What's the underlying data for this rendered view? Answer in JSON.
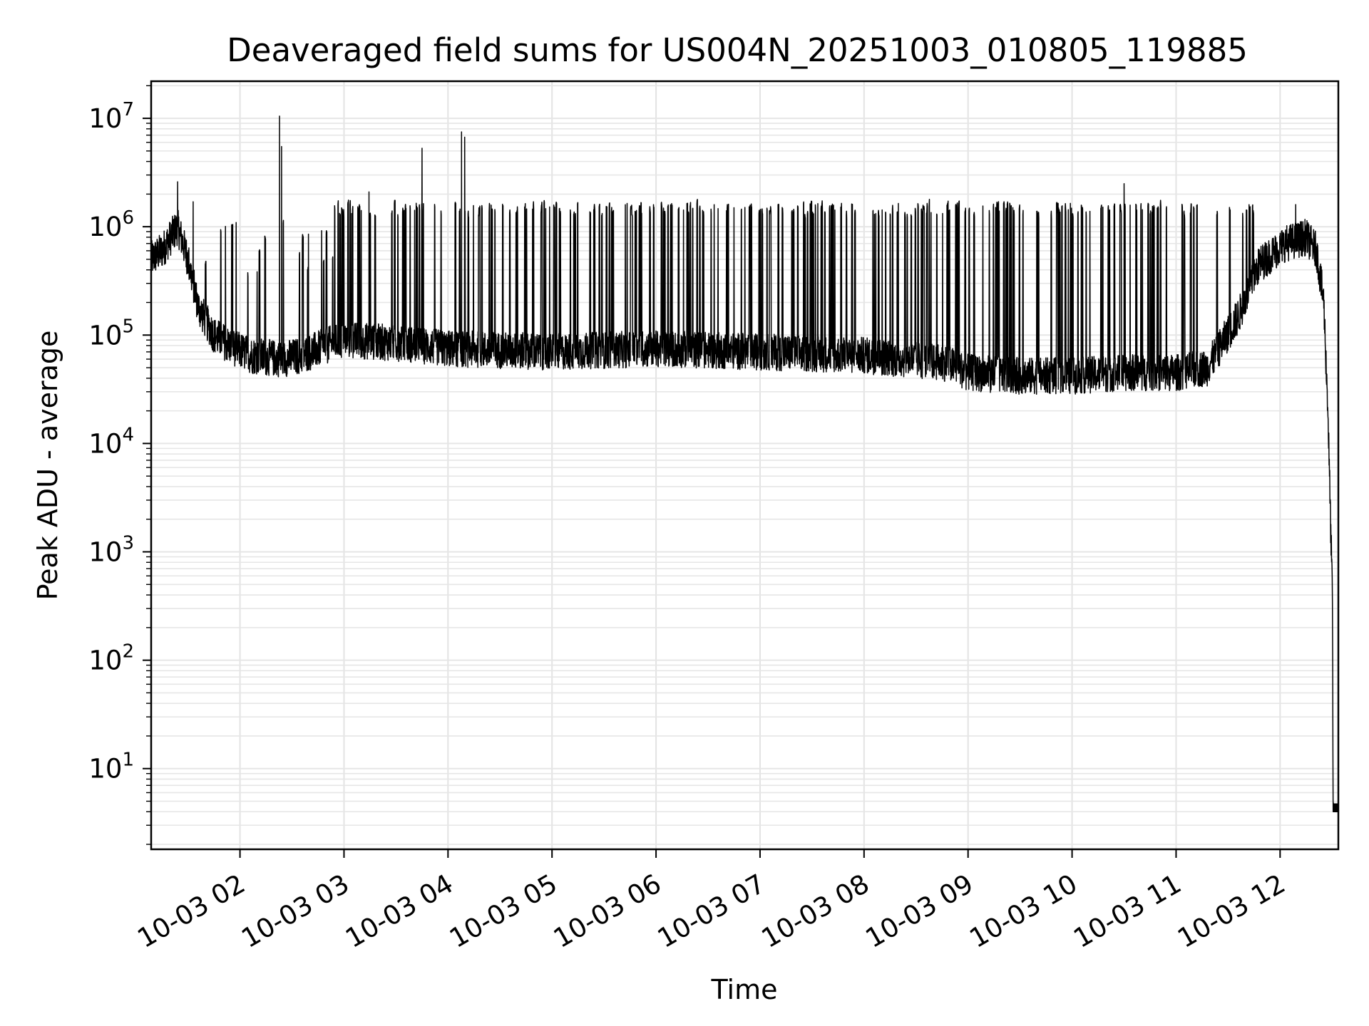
{
  "chart_data": {
    "type": "line",
    "title": "Deaveraged field sums for US004N_20251003_010805_119885",
    "xlabel": "Time",
    "ylabel": "Peak ADU - average",
    "yscale": "log",
    "ylim": [
      1.8,
      22000000
    ],
    "xlim_hours": [
      1.146,
      12.56
    ],
    "grid": true,
    "x_ticks": [
      {
        "hour": 2,
        "label": "10-03 02"
      },
      {
        "hour": 3,
        "label": "10-03 03"
      },
      {
        "hour": 4,
        "label": "10-03 04"
      },
      {
        "hour": 5,
        "label": "10-03 05"
      },
      {
        "hour": 6,
        "label": "10-03 06"
      },
      {
        "hour": 7,
        "label": "10-03 07"
      },
      {
        "hour": 8,
        "label": "10-03 08"
      },
      {
        "hour": 9,
        "label": "10-03 09"
      },
      {
        "hour": 10,
        "label": "10-03 10"
      },
      {
        "hour": 11,
        "label": "10-03 11"
      },
      {
        "hour": 12,
        "label": "10-03 12"
      }
    ],
    "y_ticks": [
      {
        "value": 10,
        "base": "10",
        "exp": "1"
      },
      {
        "value": 100,
        "base": "10",
        "exp": "2"
      },
      {
        "value": 1000,
        "base": "10",
        "exp": "3"
      },
      {
        "value": 10000,
        "base": "10",
        "exp": "4"
      },
      {
        "value": 100000,
        "base": "10",
        "exp": "5"
      },
      {
        "value": 1000000,
        "base": "10",
        "exp": "6"
      },
      {
        "value": 10000000,
        "base": "10",
        "exp": "7"
      }
    ],
    "series": [
      {
        "name": "Peak ADU - average",
        "color": "#000000",
        "baseline": [
          [
            1.146,
            500000
          ],
          [
            1.25,
            600000
          ],
          [
            1.4,
            1000000
          ],
          [
            1.5,
            500000
          ],
          [
            1.6,
            180000
          ],
          [
            1.75,
            100000
          ],
          [
            1.9,
            80000
          ],
          [
            2.1,
            65000
          ],
          [
            2.4,
            60000
          ],
          [
            2.6,
            65000
          ],
          [
            2.9,
            85000
          ],
          [
            3.0,
            90000
          ],
          [
            3.5,
            85000
          ],
          [
            4.0,
            75000
          ],
          [
            5.0,
            70000
          ],
          [
            6.0,
            75000
          ],
          [
            7.0,
            70000
          ],
          [
            8.0,
            65000
          ],
          [
            8.8,
            55000
          ],
          [
            9.0,
            45000
          ],
          [
            9.5,
            42000
          ],
          [
            10.0,
            42000
          ],
          [
            10.5,
            45000
          ],
          [
            11.0,
            45000
          ],
          [
            11.3,
            50000
          ],
          [
            11.6,
            150000
          ],
          [
            11.8,
            450000
          ],
          [
            12.05,
            700000
          ],
          [
            12.25,
            800000
          ],
          [
            12.35,
            600000
          ],
          [
            12.42,
            200000
          ],
          [
            12.46,
            20000
          ],
          [
            12.49,
            1200
          ],
          [
            12.503,
            400
          ],
          [
            12.51,
            4
          ],
          [
            12.56,
            4
          ]
        ],
        "spike_ceiling": 1500000,
        "spike_regions": [
          {
            "start_hour": 2.9,
            "end_hour": 11.8,
            "density": "high"
          },
          {
            "start_hour": 1.5,
            "end_hour": 2.9,
            "density": "low"
          }
        ],
        "peaks": [
          {
            "hour": 1.4,
            "value": 2600000
          },
          {
            "hour": 1.55,
            "value": 1700000
          },
          {
            "hour": 1.93,
            "value": 1050000
          },
          {
            "hour": 2.38,
            "value": 10500000
          },
          {
            "hour": 2.4,
            "value": 5500000
          },
          {
            "hour": 3.24,
            "value": 2100000
          },
          {
            "hour": 3.75,
            "value": 5300000
          },
          {
            "hour": 4.13,
            "value": 7500000
          },
          {
            "hour": 4.16,
            "value": 6700000
          },
          {
            "hour": 10.5,
            "value": 2500000
          },
          {
            "hour": 12.15,
            "value": 1600000
          }
        ],
        "noise_floor_hours": [
          12.51,
          12.56
        ],
        "noise_floor_value": 4
      }
    ]
  }
}
